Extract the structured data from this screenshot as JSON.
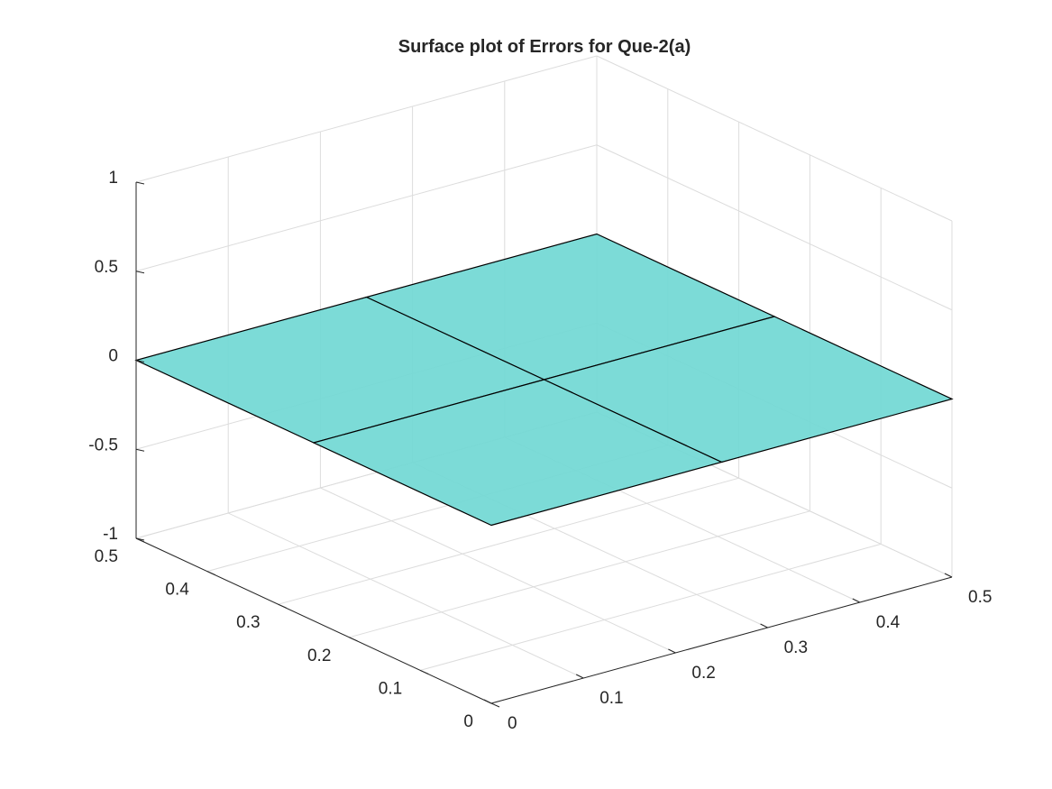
{
  "chart_data": {
    "type": "surface",
    "title": "Surface plot of Errors for Que-2(a)",
    "xlabel": "",
    "ylabel": "",
    "zlabel": "",
    "x": [
      0,
      0.25,
      0.5
    ],
    "y": [
      0,
      0.25,
      0.5
    ],
    "z": [
      [
        0,
        0,
        0
      ],
      [
        0,
        0,
        0
      ],
      [
        0,
        0,
        0
      ]
    ],
    "xlim": [
      0,
      0.5
    ],
    "ylim": [
      0,
      0.5
    ],
    "zlim": [
      -1,
      1
    ],
    "x_ticks": [
      "0",
      "0.1",
      "0.2",
      "0.3",
      "0.4",
      "0.5"
    ],
    "y_ticks": [
      "0",
      "0.1",
      "0.2",
      "0.3",
      "0.4",
      "0.5"
    ],
    "z_ticks": [
      "-1",
      "-0.5",
      "0",
      "0.5",
      "1"
    ],
    "grid": true,
    "surface_color": "#72d8d4",
    "edge_color": "#000000"
  }
}
